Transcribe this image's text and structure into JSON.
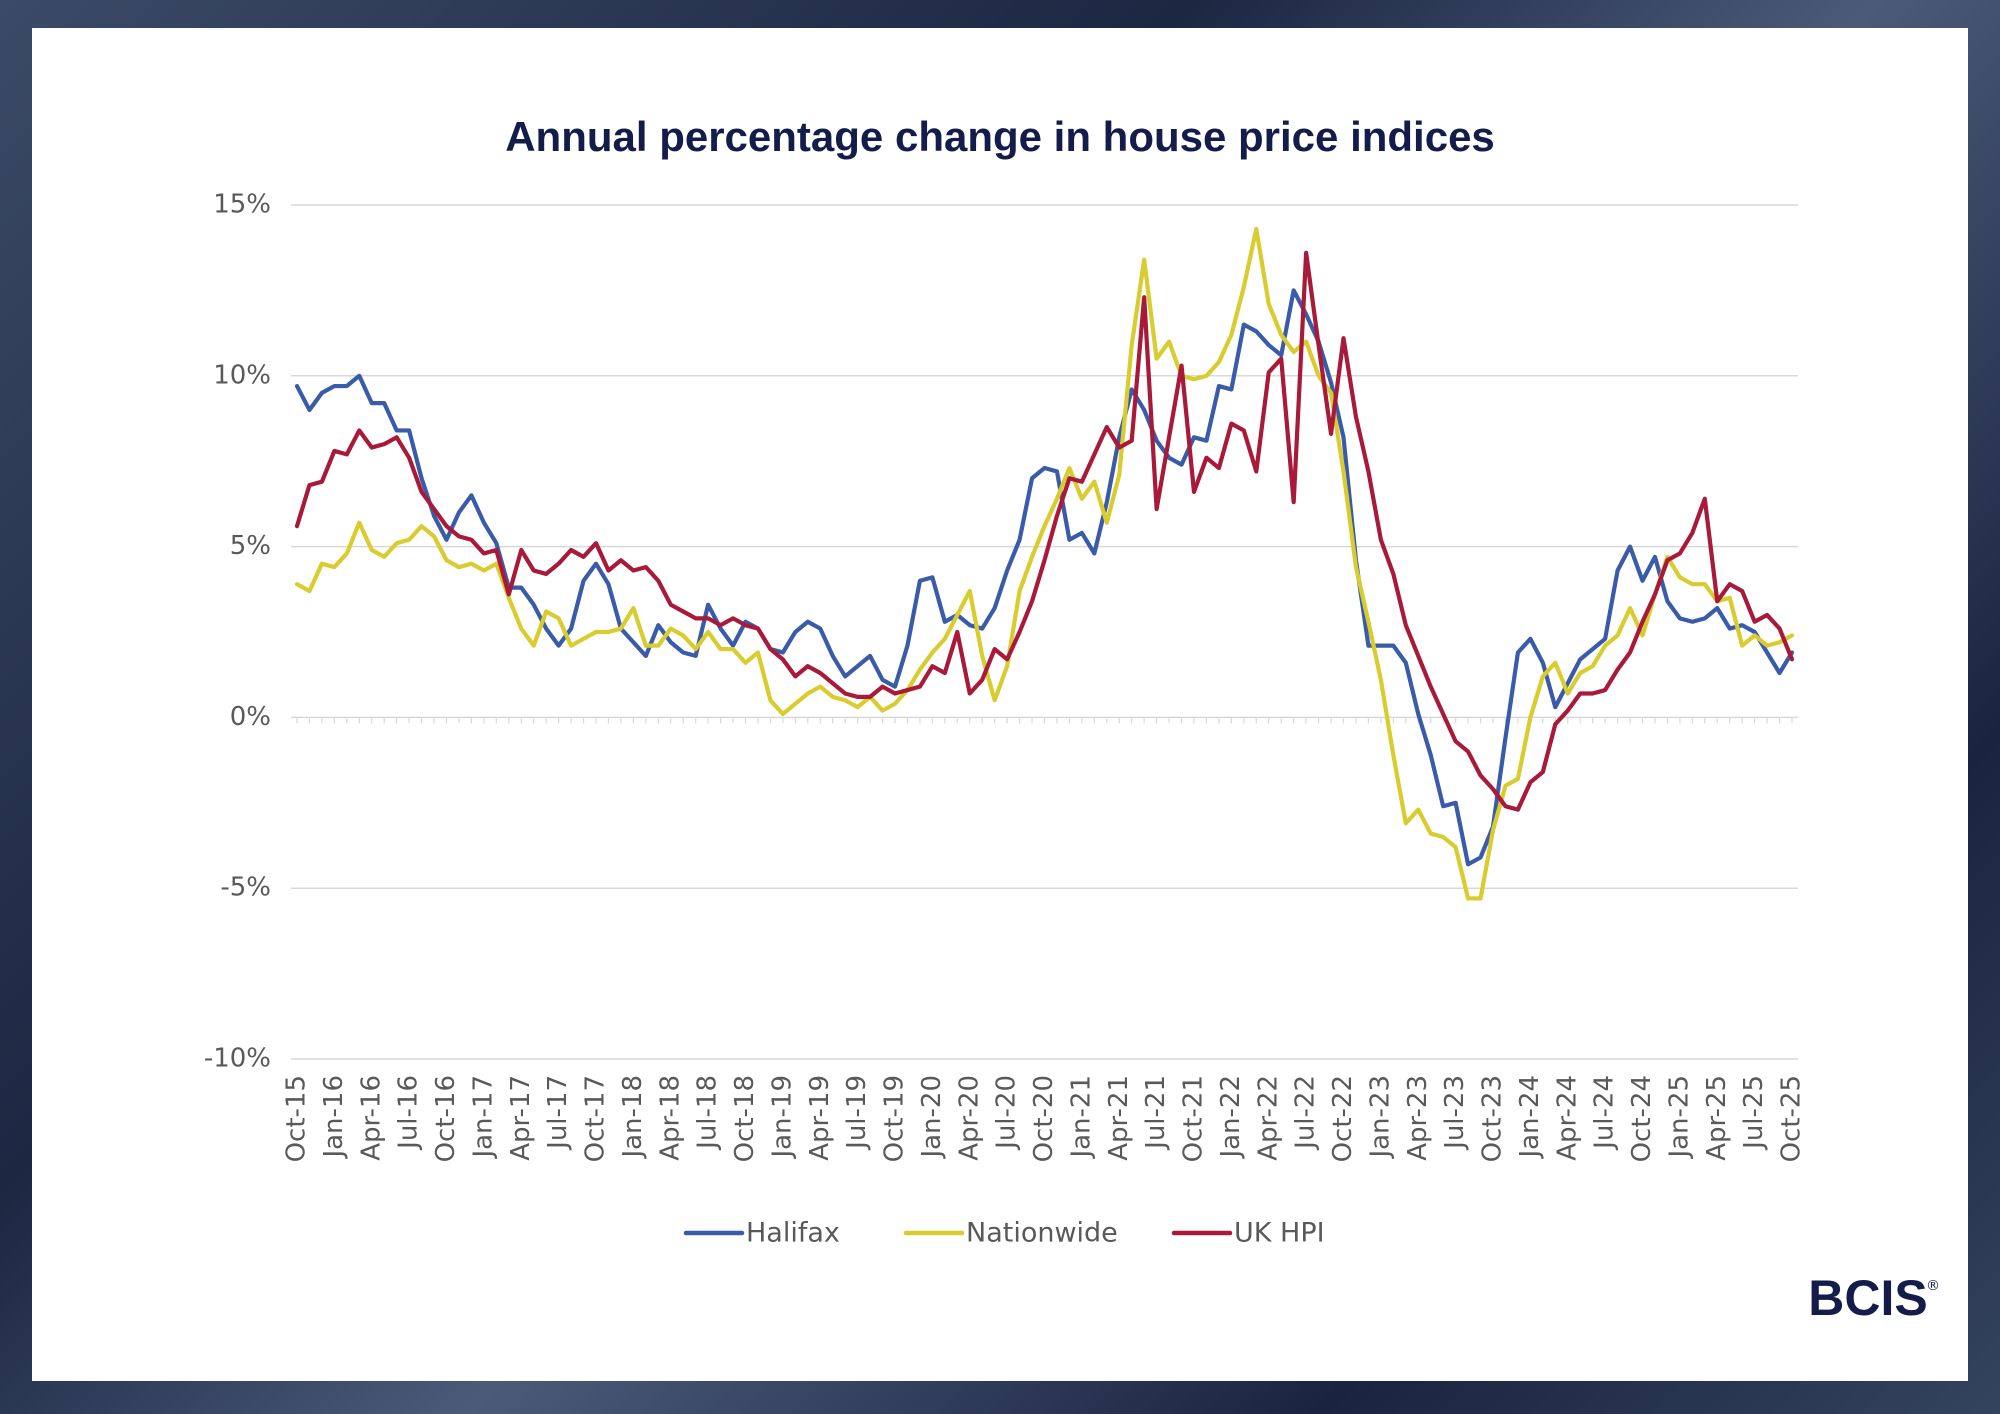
{
  "brand": "BCIS",
  "brand_mark": "®",
  "chart_data": {
    "type": "line",
    "title": "Annual percentage change in house price indices",
    "categories": [
      "Oct-15",
      null,
      null,
      "Jan-16",
      null,
      null,
      "Apr-16",
      null,
      null,
      "Jul-16",
      null,
      null,
      "Oct-16",
      null,
      null,
      "Jan-17",
      null,
      null,
      "Apr-17",
      null,
      null,
      "Jul-17",
      null,
      null,
      "Oct-17",
      null,
      null,
      "Jan-18",
      null,
      null,
      "Apr-18",
      null,
      null,
      "Jul-18",
      null,
      null,
      "Oct-18",
      null,
      null,
      "Jan-19",
      null,
      null,
      "Apr-19",
      null,
      null,
      "Jul-19",
      null,
      null,
      "Oct-19",
      null,
      null,
      "Jan-20",
      null,
      null,
      "Apr-20",
      null,
      null,
      "Jul-20",
      null,
      null,
      "Oct-20",
      null,
      null,
      "Jan-21",
      null,
      null,
      "Apr-21",
      null,
      null,
      "Jul-21",
      null,
      null,
      "Oct-21",
      null,
      null,
      "Jan-22",
      null,
      null,
      "Apr-22",
      null,
      null,
      "Jul-22",
      null,
      null,
      "Oct-22",
      null,
      null,
      "Jan-23",
      null,
      null,
      "Apr-23",
      null,
      null,
      "Jul-23",
      null,
      null,
      "Oct-23",
      null,
      null,
      "Jan-24",
      null,
      null,
      "Apr-24",
      null,
      null,
      "Jul-24",
      null,
      null,
      "Oct-24",
      null,
      null,
      "Jan-25",
      null,
      null,
      "Apr-25",
      null,
      null,
      "Jul-25",
      null,
      null,
      "Oct-25"
    ],
    "series": [
      {
        "name": "Halifax",
        "color": "#3a5ba9",
        "values": [
          9.7,
          9.0,
          9.5,
          9.7,
          9.7,
          10.0,
          9.2,
          9.2,
          8.4,
          8.4,
          7.0,
          5.9,
          5.2,
          6.0,
          6.5,
          5.7,
          5.1,
          3.8,
          3.8,
          3.3,
          2.6,
          2.1,
          2.6,
          4.0,
          4.5,
          3.9,
          2.6,
          2.2,
          1.8,
          2.7,
          2.2,
          1.9,
          1.8,
          3.3,
          2.6,
          2.1,
          2.8,
          2.6,
          2.0,
          1.9,
          2.5,
          2.8,
          2.6,
          1.8,
          1.2,
          1.5,
          1.8,
          1.1,
          0.9,
          2.1,
          4.0,
          4.1,
          2.8,
          3.0,
          2.7,
          2.6,
          3.2,
          4.3,
          5.2,
          7.0,
          7.3,
          7.2,
          5.2,
          5.4,
          4.8,
          6.3,
          8.2,
          9.6,
          9.0,
          8.1,
          7.6,
          7.4,
          8.2,
          8.1,
          9.7,
          9.6,
          11.5,
          11.3,
          10.9,
          10.6,
          12.5,
          11.8,
          11.0,
          9.8,
          8.2,
          4.6,
          2.1,
          2.1,
          2.1,
          1.6,
          0.1,
          -1.1,
          -2.6,
          -2.5,
          -4.3,
          -4.1,
          -3.2,
          -0.6,
          1.9,
          2.3,
          1.6,
          0.3,
          1.0,
          1.7,
          2.0,
          2.3,
          4.3,
          5.0,
          4.0,
          4.7,
          3.4,
          2.9,
          2.8,
          2.9,
          3.2,
          2.6,
          2.7,
          2.5,
          1.9,
          1.3,
          1.9
        ]
      },
      {
        "name": "Nationwide",
        "color": "#d8cc2f",
        "values": [
          3.9,
          3.7,
          4.5,
          4.4,
          4.8,
          5.7,
          4.9,
          4.7,
          5.1,
          5.2,
          5.6,
          5.3,
          4.6,
          4.4,
          4.5,
          4.3,
          4.5,
          3.5,
          2.6,
          2.1,
          3.1,
          2.9,
          2.1,
          2.3,
          2.5,
          2.5,
          2.6,
          3.2,
          2.1,
          2.1,
          2.6,
          2.4,
          2.0,
          2.5,
          2.0,
          2.0,
          1.6,
          1.9,
          0.5,
          0.1,
          0.4,
          0.7,
          0.9,
          0.6,
          0.5,
          0.3,
          0.6,
          0.2,
          0.4,
          0.8,
          1.4,
          1.9,
          2.3,
          3.0,
          3.7,
          1.8,
          0.5,
          1.5,
          3.7,
          4.7,
          5.6,
          6.4,
          7.3,
          6.4,
          6.9,
          5.7,
          7.1,
          10.9,
          13.4,
          10.5,
          11.0,
          10.0,
          9.9,
          10.0,
          10.4,
          11.2,
          12.6,
          14.3,
          12.1,
          11.2,
          10.7,
          11.0,
          10.0,
          9.5,
          7.2,
          4.4,
          2.8,
          1.1,
          -1.1,
          -3.1,
          -2.7,
          -3.4,
          -3.5,
          -3.8,
          -5.3,
          -5.3,
          -3.3,
          -2.0,
          -1.8,
          0.0,
          1.2,
          1.6,
          0.7,
          1.3,
          1.5,
          2.1,
          2.4,
          3.2,
          2.4,
          3.6,
          4.7,
          4.1,
          3.9,
          3.9,
          3.4,
          3.5,
          2.1,
          2.4,
          2.1,
          2.2,
          2.4
        ]
      },
      {
        "name": "UK HPI",
        "color": "#a8193a",
        "values": [
          5.6,
          6.8,
          6.9,
          7.8,
          7.7,
          8.4,
          7.9,
          8.0,
          8.2,
          7.6,
          6.6,
          6.1,
          5.6,
          5.3,
          5.2,
          4.8,
          4.9,
          3.6,
          4.9,
          4.3,
          4.2,
          4.5,
          4.9,
          4.7,
          5.1,
          4.3,
          4.6,
          4.3,
          4.4,
          4.0,
          3.3,
          3.1,
          2.9,
          2.9,
          2.7,
          2.9,
          2.7,
          2.6,
          2.0,
          1.7,
          1.2,
          1.5,
          1.3,
          1.0,
          0.7,
          0.6,
          0.6,
          0.9,
          0.7,
          0.8,
          0.9,
          1.5,
          1.3,
          2.5,
          0.7,
          1.1,
          2.0,
          1.7,
          2.5,
          3.4,
          4.6,
          5.9,
          7.0,
          6.9,
          7.7,
          8.5,
          7.9,
          8.1,
          12.3,
          6.1,
          8.2,
          10.3,
          6.6,
          7.6,
          7.3,
          8.6,
          8.4,
          7.2,
          10.1,
          10.5,
          6.3,
          13.6,
          10.9,
          8.3,
          11.1,
          8.8,
          7.2,
          5.2,
          4.2,
          2.7,
          1.8,
          0.9,
          0.1,
          -0.7,
          -1.0,
          -1.7,
          -2.1,
          -2.6,
          -2.7,
          -1.9,
          -1.6,
          -0.2,
          0.2,
          0.7,
          0.7,
          0.8,
          1.4,
          1.9,
          2.8,
          3.6,
          4.6,
          4.8,
          5.4,
          6.4,
          3.4,
          3.9,
          3.7,
          2.8,
          3.0,
          2.6,
          1.7
        ]
      }
    ],
    "ylim": [
      -10,
      15
    ],
    "yticks": [
      {
        "value": -10,
        "label": "-10%"
      },
      {
        "value": -5,
        "label": "-5%"
      },
      {
        "value": 0,
        "label": "0%"
      },
      {
        "value": 5,
        "label": "5%"
      },
      {
        "value": 10,
        "label": "10%"
      },
      {
        "value": 15,
        "label": "15%"
      }
    ],
    "grid": true,
    "legend": "bottom"
  }
}
